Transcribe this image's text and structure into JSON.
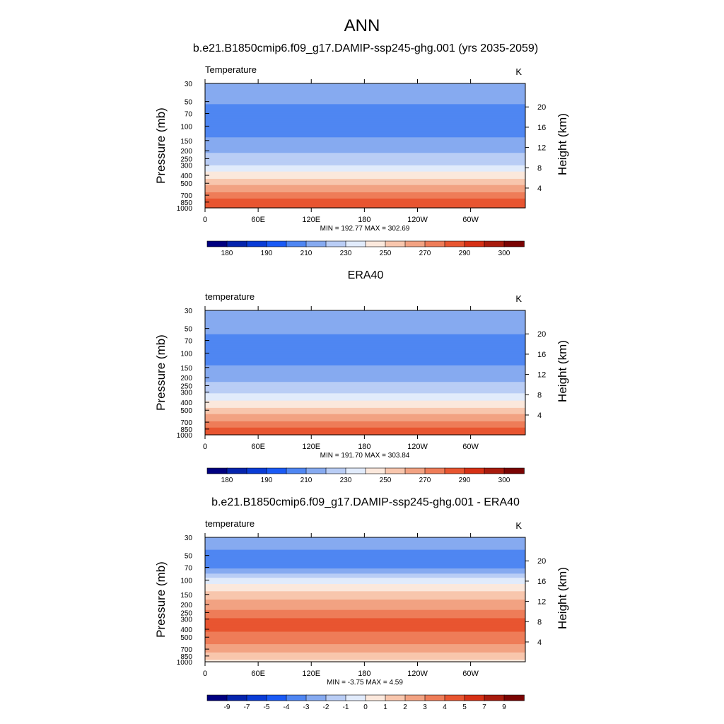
{
  "figure_title": "ANN",
  "chart_data": [
    {
      "type": "heatmap",
      "title": "b.e21.B1850cmip6.f09_g17.DAMIP-ssp245-ghg.001 (yrs 2035-2059)",
      "field_label": "Temperature",
      "units": "K",
      "xlabel": "",
      "ylabel": "Pressure (mb)",
      "y2label": "Height (km)",
      "x_ticks": [
        "0",
        "60E",
        "120E",
        "180",
        "120W",
        "60W"
      ],
      "y_ticks": [
        "30",
        "50",
        "70",
        "100",
        "150",
        "200",
        "250",
        "300",
        "400",
        "500",
        "700",
        "850",
        "1000"
      ],
      "y2_ticks": [
        "20",
        "16",
        "12",
        "8",
        "4"
      ],
      "stats": "MIN = 192.77  MAX = 302.69",
      "colorbar_labels": [
        "180",
        "190",
        "210",
        "230",
        "250",
        "270",
        "290",
        "300"
      ],
      "colorbar_colors": [
        "#000080",
        "#0524ad",
        "#0a3cd6",
        "#1a5af5",
        "#4f86f2",
        "#86aaf0",
        "#b9cdf5",
        "#e1ebfb",
        "#fbe8dc",
        "#f8c6ad",
        "#f2a282",
        "#ee7c58",
        "#e85530",
        "#d63015",
        "#a81b0d",
        "#7a0403"
      ],
      "levels_mb": [
        30,
        50,
        70,
        100,
        150,
        200,
        250,
        300,
        400,
        500,
        700,
        850,
        1000
      ],
      "temperature_K": [
        217,
        211,
        206,
        203,
        212,
        218,
        224,
        230,
        245,
        257,
        275,
        284,
        290
      ],
      "ylim": [
        1000,
        30
      ],
      "y_scale": "log",
      "colorbar_position": "bottom"
    },
    {
      "type": "heatmap",
      "title": "ERA40",
      "field_label": "temperature",
      "units": "K",
      "xlabel": "",
      "ylabel": "Pressure (mb)",
      "y2label": "Height (km)",
      "x_ticks": [
        "0",
        "60E",
        "120E",
        "180",
        "120W",
        "60W"
      ],
      "y_ticks": [
        "30",
        "50",
        "70",
        "100",
        "150",
        "200",
        "250",
        "300",
        "400",
        "500",
        "700",
        "850",
        "1000"
      ],
      "y2_ticks": [
        "20",
        "16",
        "12",
        "8",
        "4"
      ],
      "stats": "MIN = 191.70  MAX = 303.84",
      "colorbar_labels": [
        "180",
        "190",
        "210",
        "230",
        "250",
        "270",
        "290",
        "300"
      ],
      "colorbar_colors": [
        "#000080",
        "#0524ad",
        "#0a3cd6",
        "#1a5af5",
        "#4f86f2",
        "#86aaf0",
        "#b9cdf5",
        "#e1ebfb",
        "#fbe8dc",
        "#f8c6ad",
        "#f2a282",
        "#ee7c58",
        "#e85530",
        "#d63015",
        "#a81b0d",
        "#7a0403"
      ],
      "levels_mb": [
        30,
        50,
        70,
        100,
        150,
        200,
        250,
        300,
        400,
        500,
        700,
        850,
        1000
      ],
      "temperature_K": [
        220,
        213,
        207,
        203,
        211,
        217,
        223,
        229,
        243,
        254,
        272,
        282,
        289
      ],
      "ylim": [
        1000,
        30
      ],
      "y_scale": "log",
      "colorbar_position": "bottom"
    },
    {
      "type": "heatmap",
      "title": "b.e21.B1850cmip6.f09_g17.DAMIP-ssp245-ghg.001 - ERA40",
      "field_label": "temperature",
      "units": "K",
      "xlabel": "",
      "ylabel": "Pressure (mb)",
      "y2label": "Height (km)",
      "x_ticks": [
        "0",
        "60E",
        "120E",
        "180",
        "120W",
        "60W"
      ],
      "y_ticks": [
        "30",
        "50",
        "70",
        "100",
        "150",
        "200",
        "250",
        "300",
        "400",
        "500",
        "700",
        "850",
        "1000"
      ],
      "y2_ticks": [
        "20",
        "16",
        "12",
        "8",
        "4"
      ],
      "stats": "MIN = -3.75  MAX =  4.59",
      "colorbar_labels": [
        "-9",
        "-7",
        "-5",
        "-4",
        "-3",
        "-2",
        "-1",
        "0",
        "1",
        "2",
        "3",
        "4",
        "5",
        "7",
        "9"
      ],
      "colorbar_colors": [
        "#000080",
        "#0524ad",
        "#0a3cd6",
        "#1a5af5",
        "#4f86f2",
        "#86aaf0",
        "#b9cdf5",
        "#e1ebfb",
        "#fbe8dc",
        "#f8c6ad",
        "#f2a282",
        "#ee7c58",
        "#e85530",
        "#d63015",
        "#a81b0d",
        "#7a0403"
      ],
      "levels_mb": [
        30,
        50,
        70,
        100,
        150,
        200,
        250,
        300,
        400,
        500,
        700,
        850,
        1000
      ],
      "difference_K": [
        -2.5,
        -3.2,
        -3.3,
        -0.5,
        1.5,
        2.5,
        3.2,
        4.1,
        4.2,
        3.5,
        2.6,
        1.5,
        0.8
      ],
      "ylim": [
        1000,
        30
      ],
      "y_scale": "log",
      "colorbar_position": "bottom"
    }
  ]
}
